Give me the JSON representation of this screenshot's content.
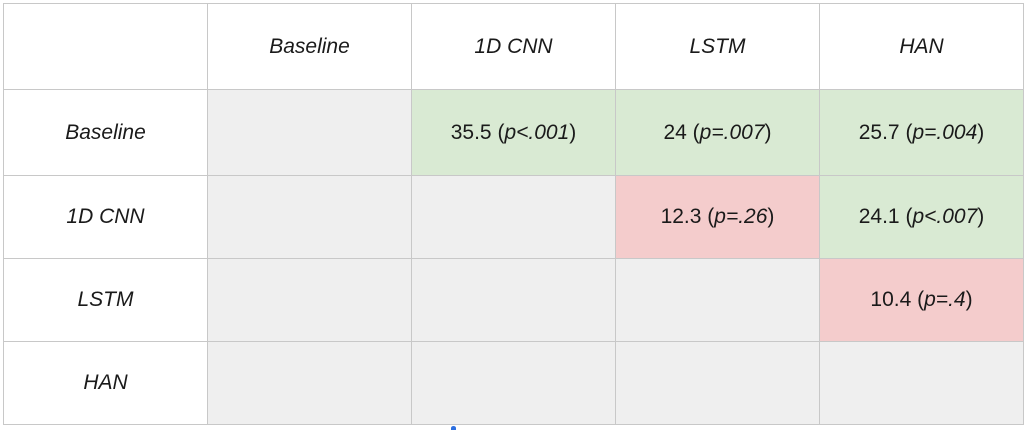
{
  "columns": [
    "Baseline",
    "1D CNN",
    "LSTM",
    "HAN"
  ],
  "rows": [
    {
      "label": "Baseline",
      "cells": [
        {
          "value": "",
          "p_label": "",
          "p": "",
          "status": "gray"
        },
        {
          "value": "35.5",
          "p_label": "p<",
          "p": ".001",
          "status": "green"
        },
        {
          "value": "24",
          "p_label": "p=",
          "p": ".007",
          "status": "green"
        },
        {
          "value": "25.7",
          "p_label": "p=",
          "p": ".004",
          "status": "green"
        }
      ]
    },
    {
      "label": "1D CNN",
      "cells": [
        {
          "value": "",
          "p_label": "",
          "p": "",
          "status": "gray"
        },
        {
          "value": "",
          "p_label": "",
          "p": "",
          "status": "gray"
        },
        {
          "value": "12.3",
          "p_label": "p=",
          "p": ".26",
          "status": "red"
        },
        {
          "value": "24.1",
          "p_label": "p<",
          "p": ".007",
          "status": "green"
        }
      ]
    },
    {
      "label": "LSTM",
      "cells": [
        {
          "value": "",
          "p_label": "",
          "p": "",
          "status": "gray"
        },
        {
          "value": "",
          "p_label": "",
          "p": "",
          "status": "gray"
        },
        {
          "value": "",
          "p_label": "",
          "p": "",
          "status": "gray"
        },
        {
          "value": "10.4",
          "p_label": "p=",
          "p": ".4",
          "status": "red"
        }
      ]
    },
    {
      "label": "HAN",
      "cells": [
        {
          "value": "",
          "p_label": "",
          "p": "",
          "status": "gray"
        },
        {
          "value": "",
          "p_label": "",
          "p": "",
          "status": "gray"
        },
        {
          "value": "",
          "p_label": "",
          "p": "",
          "status": "gray"
        },
        {
          "value": "",
          "p_label": "",
          "p": "",
          "status": "gray"
        }
      ]
    }
  ],
  "colors": {
    "green": "#d9ead3",
    "red": "#f4cccc",
    "gray": "#efefef",
    "border": "#c8c8c8"
  }
}
